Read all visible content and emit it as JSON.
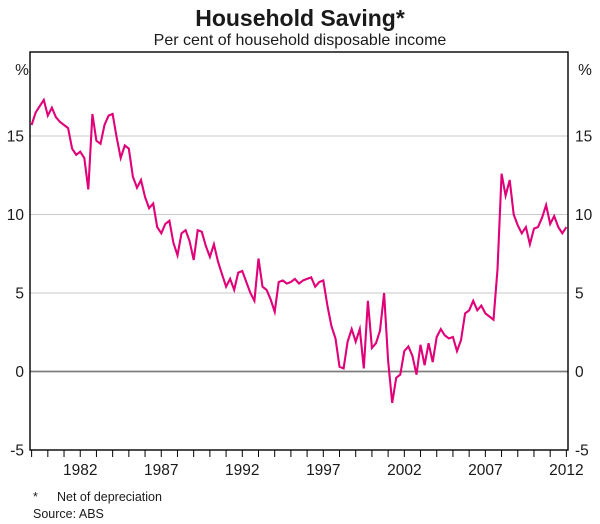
{
  "page": {
    "title": "Household Saving*",
    "subtitle": "Per cent of household disposable income",
    "unit_left": "%",
    "unit_right": "%",
    "footnote_marker": "*",
    "footnote_text": "Net of depreciation",
    "source": "Source: ABS"
  },
  "chart_data": {
    "type": "line",
    "title": "Household Saving*",
    "subtitle": "Per cent of household disposable income",
    "ylabel_left": "%",
    "ylabel_right": "%",
    "grid": "horizontal gridlines at 0, 5, 10, 15; darker line at 0",
    "legend": "none",
    "line_color": "#E00078",
    "frame_color": "#000000",
    "gridline_color": "#c9c9c9",
    "zero_line_color": "#7d7d7d",
    "x_tick_labels": [
      1982,
      1987,
      1992,
      1997,
      2002,
      2007,
      2012
    ],
    "minor_x_ticks": "every year",
    "y_ticks": [
      -5,
      0,
      5,
      10,
      15
    ],
    "xlim": [
      1978.9,
      2012.1
    ],
    "ylim": [
      -5,
      20.35
    ],
    "footnote": "* Net of depreciation",
    "source": "Source: ABS",
    "series": [
      {
        "name": "Household saving ratio (net of depreciation, % of household disposable income)",
        "frequency": "quarterly",
        "x_start": 1979.0,
        "x_step": 0.25,
        "values": [
          15.7,
          16.5,
          16.9,
          17.3,
          16.3,
          16.8,
          16.2,
          15.9,
          15.7,
          15.5,
          14.2,
          13.8,
          14.0,
          13.6,
          11.6,
          16.4,
          14.7,
          14.5,
          15.7,
          16.3,
          16.4,
          14.9,
          13.6,
          14.4,
          14.2,
          12.4,
          11.7,
          12.2,
          11.1,
          10.4,
          10.7,
          9.2,
          8.8,
          9.4,
          9.6,
          8.2,
          7.4,
          8.8,
          9.0,
          8.3,
          7.1,
          9.0,
          8.9,
          8.0,
          7.3,
          8.1,
          7.0,
          6.2,
          5.4,
          5.9,
          5.2,
          6.3,
          6.4,
          5.7,
          5.0,
          4.5,
          7.2,
          5.4,
          5.2,
          4.6,
          3.8,
          5.7,
          5.8,
          5.6,
          5.7,
          5.9,
          5.6,
          5.8,
          5.9,
          6.0,
          5.4,
          5.7,
          5.8,
          4.2,
          2.9,
          2.1,
          0.3,
          0.2,
          1.9,
          2.7,
          1.9,
          2.7,
          0.2,
          4.5,
          1.5,
          1.8,
          2.6,
          5.0,
          0.7,
          -2.0,
          -0.4,
          -0.2,
          1.3,
          1.6,
          1.0,
          -0.2,
          1.7,
          0.4,
          1.8,
          0.6,
          2.2,
          2.7,
          2.3,
          2.1,
          2.2,
          1.3,
          2.0,
          3.7,
          3.9,
          4.5,
          3.9,
          4.2,
          3.7,
          3.5,
          3.3,
          6.5,
          12.6,
          11.2,
          12.2,
          10.0,
          9.3,
          8.8,
          9.2,
          8.1,
          9.1,
          9.2,
          9.8,
          10.6,
          9.4,
          9.9,
          9.2,
          8.8,
          9.2
        ]
      }
    ]
  }
}
